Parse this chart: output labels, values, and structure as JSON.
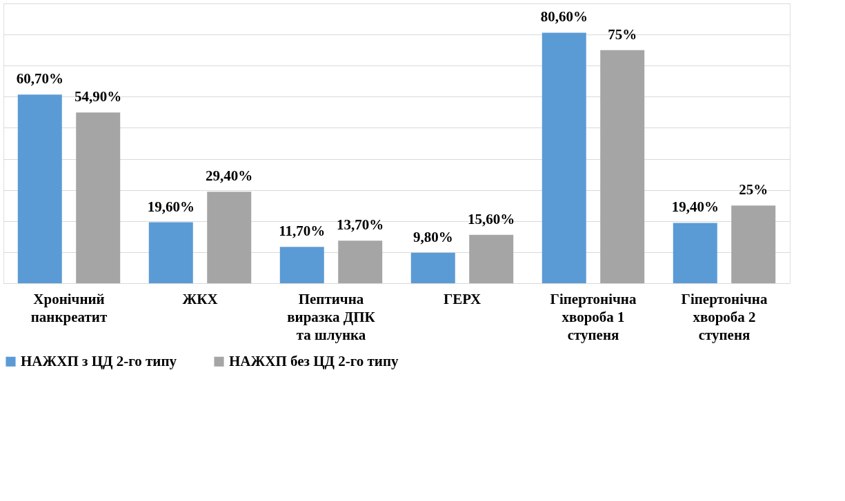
{
  "chart_data": {
    "type": "bar",
    "categories": [
      "Хронічний\nпанкреатит",
      "ЖКХ",
      "Пептична\nвиразка ДПК\nта шлунка",
      "ГЕРХ",
      "Гіпертонічна\nхвороба 1\nступеня",
      "Гіпертонічна\nхвороба 2\nступеня"
    ],
    "series": [
      {
        "name": "НАЖХП з ЦД 2-го типу",
        "color": "#5b9bd5",
        "values": [
          60.7,
          19.6,
          11.7,
          9.8,
          80.6,
          19.4
        ],
        "value_labels": [
          "60,70%",
          "19,60%",
          "11,70%",
          "9,80%",
          "80,60%",
          "19,40%"
        ]
      },
      {
        "name": "НАЖХП без ЦД 2-го типу",
        "color": "#a5a5a5",
        "values": [
          54.9,
          29.4,
          13.7,
          15.6,
          75,
          25
        ],
        "value_labels": [
          "54,90%",
          "29,40%",
          "13,70%",
          "15,60%",
          "75%",
          "25%"
        ]
      }
    ],
    "ylim": [
      0,
      90
    ],
    "yticks": [
      {
        "value": 0,
        "label": null
      },
      {
        "value": 10,
        "label": null
      },
      {
        "value": 20,
        "label": null
      },
      {
        "value": 30,
        "label": null
      },
      {
        "value": 40,
        "label": null
      },
      {
        "value": 50,
        "label": null
      },
      {
        "value": 60,
        "label": null
      },
      {
        "value": 70,
        "label": null
      },
      {
        "value": 80,
        "label": null
      },
      {
        "value": 90,
        "label": null
      }
    ],
    "grid": "y",
    "tick_labels": "x",
    "legend": "bottom"
  }
}
